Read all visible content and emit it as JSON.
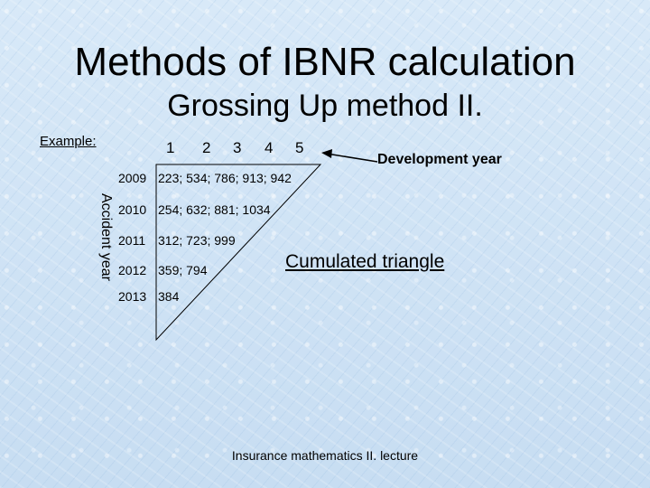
{
  "title": "Methods of IBNR calculation",
  "subtitle": "Grossing Up method II.",
  "example_label": "Example:",
  "development_years": [
    "1",
    "2",
    "3",
    "4",
    "5"
  ],
  "development_year_label": "Development year",
  "accident_year_label": "Accident year",
  "rows": [
    {
      "year": "2009",
      "values": "223; 534; 786; 913; 942"
    },
    {
      "year": "2010",
      "values": "254; 632; 881; 1034"
    },
    {
      "year": "2011",
      "values": "312; 723; 999"
    },
    {
      "year": "2012",
      "values": "359; 794"
    },
    {
      "year": "2013",
      "values": "384"
    }
  ],
  "triangle_label": "Cumulated triangle",
  "footer": "Insurance mathematics II. lecture"
}
